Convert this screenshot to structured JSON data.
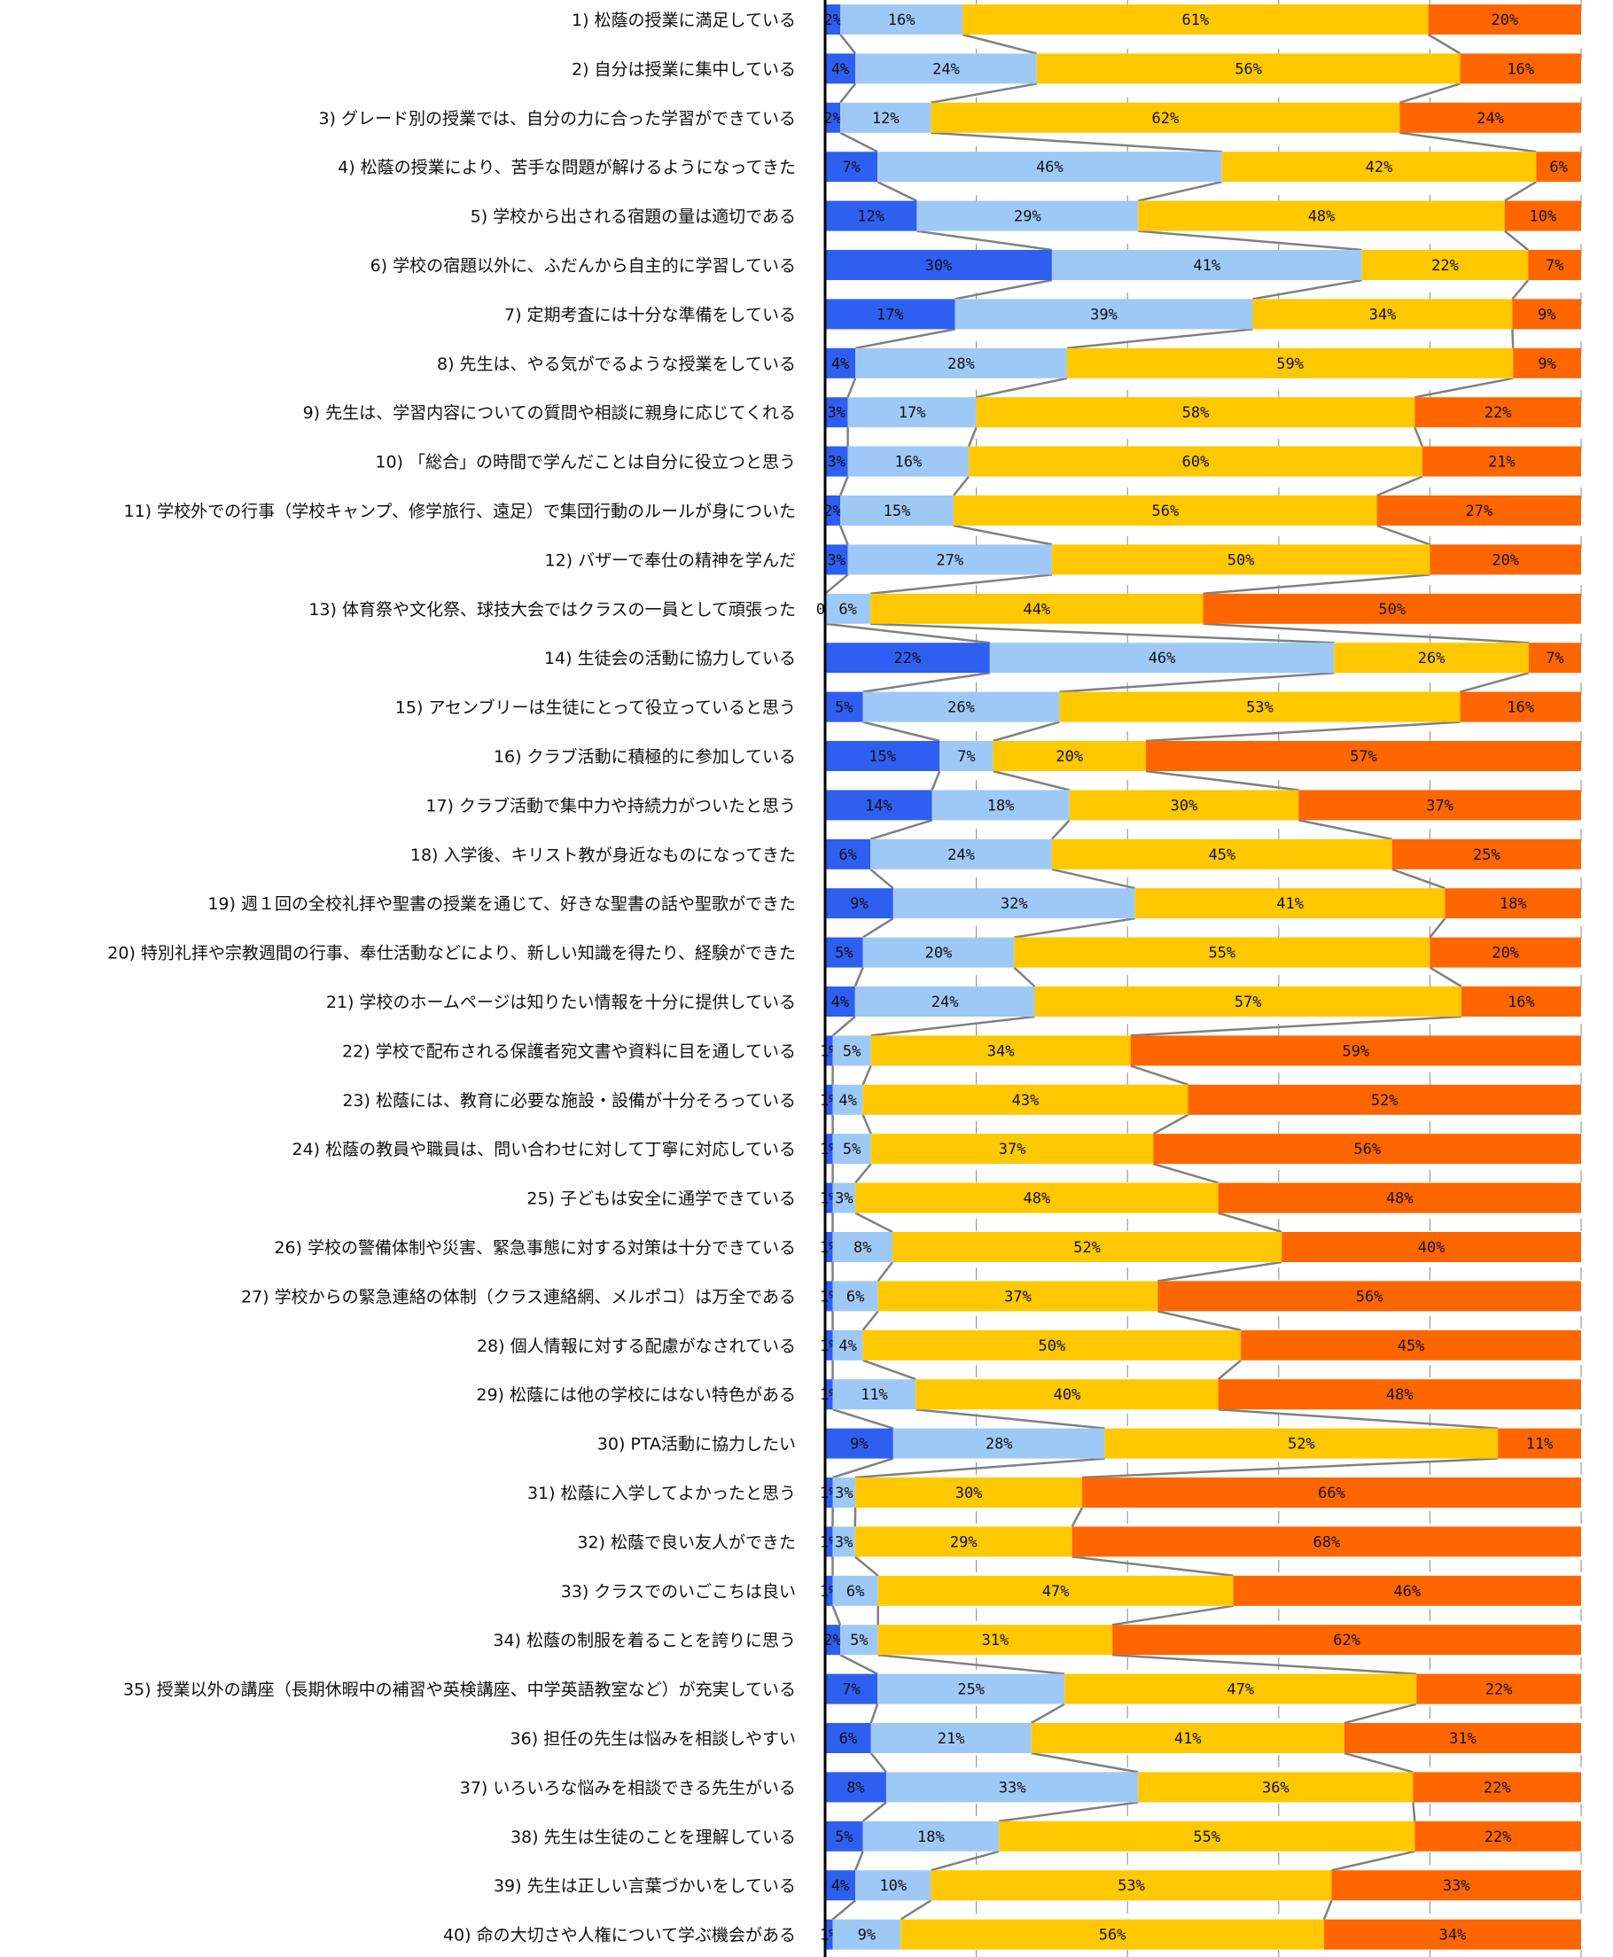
{
  "chart_data": {
    "type": "bar",
    "stacked": "percent",
    "orientation": "horizontal",
    "title": "",
    "xlabel": "",
    "ylabel": "",
    "xlim": [
      0,
      100
    ],
    "grid": true,
    "series_colors": [
      "#2f5ff0",
      "#9ec9f7",
      "#ffc800",
      "#ff6600"
    ],
    "categories": [
      "1) 松蔭の授業に満足している",
      "2) 自分は授業に集中している",
      "3) グレード別の授業では、自分の力に合った学習ができている",
      "4) 松蔭の授業により、苦手な問題が解けるようになってきた",
      "5) 学校から出される宿題の量は適切である",
      "6) 学校の宿題以外に、ふだんから自主的に学習している",
      "7) 定期考査には十分な準備をしている",
      "8) 先生は、やる気がでるような授業をしている",
      "9) 先生は、学習内容についての質問や相談に親身に応じてくれる",
      "10) 「総合」の時間で学んだことは自分に役立つと思う",
      "11) 学校外での行事（学校キャンプ、修学旅行、遠足）で集団行動のルールが身についた",
      "12) バザーで奉仕の精神を学んだ",
      "13) 体育祭や文化祭、球技大会ではクラスの一員として頑張った",
      "14) 生徒会の活動に協力している",
      "15) アセンブリーは生徒にとって役立っていると思う",
      "16) クラブ活動に積極的に参加している",
      "17) クラブ活動で集中力や持続力がついたと思う",
      "18) 入学後、キリスト教が身近なものになってきた",
      "19) 週１回の全校礼拝や聖書の授業を通じて、好きな聖書の話や聖歌ができた",
      "20) 特別礼拝や宗教週間の行事、奉仕活動などにより、新しい知識を得たり、経験ができた",
      "21) 学校のホームページは知りたい情報を十分に提供している",
      "22) 学校で配布される保護者宛文書や資料に目を通している",
      "23) 松蔭には、教育に必要な施設・設備が十分そろっている",
      "24) 松蔭の教員や職員は、問い合わせに対して丁寧に対応している",
      "25) 子どもは安全に通学できている",
      "26) 学校の警備体制や災害、緊急事態に対する対策は十分できている",
      "27) 学校からの緊急連絡の体制（クラス連絡網、メルポコ）は万全である",
      "28) 個人情報に対する配慮がなされている",
      "29) 松蔭には他の学校にはない特色がある",
      "30) PTA活動に協力したい",
      "31) 松蔭に入学してよかったと思う",
      "32) 松蔭で良い友人ができた",
      "33) クラスでのいごこちは良い",
      "34) 松蔭の制服を着ることを誇りに思う",
      "35) 授業以外の講座（長期休暇中の補習や英検講座、中学英語教室など）が充実している",
      "36) 担任の先生は悩みを相談しやすい",
      "37) いろいろな悩みを相談できる先生がいる",
      "38) 先生は生徒のことを理解している",
      "39) 先生は正しい言葉づかいをしている",
      "40) 命の大切さや人権について学ぶ機会がある"
    ],
    "series": [
      {
        "values": [
          2,
          4,
          2,
          7,
          12,
          30,
          17,
          4,
          3,
          3,
          2,
          3,
          0,
          22,
          5,
          15,
          14,
          6,
          9,
          5,
          4,
          1,
          1,
          1,
          1,
          1,
          1,
          1,
          1,
          9,
          1,
          1,
          1,
          2,
          7,
          6,
          8,
          5,
          4,
          1
        ]
      },
      {
        "values": [
          16,
          24,
          12,
          46,
          29,
          41,
          39,
          28,
          17,
          16,
          15,
          27,
          6,
          46,
          26,
          7,
          18,
          24,
          32,
          20,
          24,
          5,
          4,
          5,
          3,
          8,
          6,
          4,
          11,
          28,
          3,
          3,
          6,
          5,
          25,
          21,
          33,
          18,
          10,
          9
        ]
      },
      {
        "values": [
          61,
          56,
          62,
          42,
          48,
          22,
          34,
          59,
          58,
          60,
          56,
          50,
          44,
          26,
          53,
          20,
          30,
          45,
          41,
          55,
          57,
          34,
          43,
          37,
          48,
          52,
          37,
          50,
          40,
          52,
          30,
          29,
          47,
          31,
          47,
          41,
          36,
          55,
          53,
          56
        ]
      },
      {
        "values": [
          20,
          16,
          24,
          6,
          10,
          7,
          9,
          9,
          22,
          21,
          27,
          20,
          50,
          7,
          16,
          57,
          37,
          25,
          18,
          20,
          16,
          59,
          52,
          56,
          48,
          40,
          56,
          45,
          48,
          11,
          66,
          68,
          46,
          62,
          22,
          31,
          22,
          22,
          33,
          34
        ]
      }
    ],
    "segment_labels": [
      [
        "2%",
        "16%",
        "61%",
        "20%"
      ],
      [
        "4%",
        "24%",
        "56%",
        "16%"
      ],
      [
        "2%",
        "12%",
        "62%",
        "24%"
      ],
      [
        "7%",
        "46%",
        "42%",
        "6%"
      ],
      [
        "12%",
        "29%",
        "48%",
        "10%"
      ],
      [
        "30%",
        "41%",
        "22%",
        "7%"
      ],
      [
        "17%",
        "39%",
        "34%",
        "9%"
      ],
      [
        "4%",
        "28%",
        "59%",
        "9%"
      ],
      [
        "3%",
        "17%",
        "58%",
        "22%"
      ],
      [
        "3%",
        "16%",
        "60%",
        "21%"
      ],
      [
        "2%",
        "15%",
        "56%",
        "27%"
      ],
      [
        "3%",
        "27%",
        "50%",
        "20%"
      ],
      [
        "0%",
        "6%",
        "44%",
        "50%"
      ],
      [
        "22%",
        "46%",
        "26%",
        "7%"
      ],
      [
        "5%",
        "26%",
        "53%",
        "16%"
      ],
      [
        "15%",
        "7%",
        "20%",
        "57%"
      ],
      [
        "14%",
        "18%",
        "30%",
        "37%"
      ],
      [
        "6%",
        "24%",
        "45%",
        "25%"
      ],
      [
        "9%",
        "32%",
        "41%",
        "18%"
      ],
      [
        "5%",
        "20%",
        "55%",
        "20%"
      ],
      [
        "4%",
        "24%",
        "57%",
        "16%"
      ],
      [
        "1%",
        "5%",
        "34%",
        "59%"
      ],
      [
        "1%",
        "4%",
        "43%",
        "52%"
      ],
      [
        "1%",
        "5%",
        "37%",
        "56%"
      ],
      [
        "1%",
        "3%",
        "48%",
        "48%"
      ],
      [
        "1%",
        "8%",
        "52%",
        "40%"
      ],
      [
        "1%",
        "6%",
        "37%",
        "56%"
      ],
      [
        "1%",
        "4%",
        "50%",
        "45%"
      ],
      [
        "1%",
        "11%",
        "40%",
        "48%"
      ],
      [
        "9%",
        "28%",
        "52%",
        "11%"
      ],
      [
        "1%",
        "3%",
        "30%",
        "66%"
      ],
      [
        "1%",
        "3%",
        "29%",
        "68%"
      ],
      [
        "1%",
        "6%",
        "47%",
        "46%"
      ],
      [
        "2%",
        "5%",
        "31%",
        "62%"
      ],
      [
        "7%",
        "25%",
        "47%",
        "22%"
      ],
      [
        "6%",
        "21%",
        "41%",
        "31%"
      ],
      [
        "8%",
        "33%",
        "36%",
        "22%"
      ],
      [
        "5%",
        "18%",
        "55%",
        "22%"
      ],
      [
        "4%",
        "10%",
        "53%",
        "33%"
      ],
      [
        "1%",
        "9%",
        "56%",
        "34%"
      ]
    ]
  }
}
